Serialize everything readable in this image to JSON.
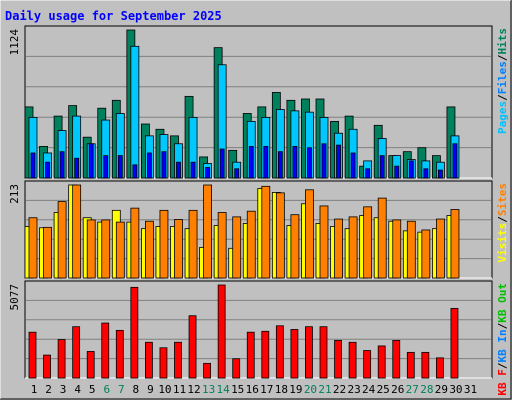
{
  "chart_data": [
    {
      "type": "bar",
      "title": "Daily usage for September 2025",
      "categories": [
        "1",
        "2",
        "3",
        "4",
        "5",
        "6",
        "7",
        "8",
        "9",
        "10",
        "11",
        "12",
        "13",
        "14",
        "15",
        "16",
        "17",
        "18",
        "19",
        "20",
        "21",
        "22",
        "23",
        "24",
        "25",
        "26",
        "27",
        "28",
        "29",
        "30",
        "31"
      ],
      "weekend_days": [
        "6",
        "7",
        "13",
        "14",
        "20",
        "21",
        "27",
        "28"
      ],
      "weekend_color": "#00805c",
      "weekday_color": "#000080",
      "panel": "top",
      "ylim": [
        0,
        1124
      ],
      "max_label": "1124",
      "side_labels": [
        {
          "text": "Pages",
          "color": "#00c0ff"
        },
        {
          "text": "Files",
          "color": "#0080ff"
        },
        {
          "text": "Hits",
          "color": "#00805c"
        }
      ],
      "series": [
        {
          "name": "Hits",
          "color": "#00805c",
          "values": [
            540,
            240,
            470,
            550,
            310,
            530,
            590,
            1124,
            410,
            370,
            320,
            620,
            160,
            990,
            210,
            490,
            540,
            650,
            590,
            600,
            600,
            430,
            470,
            90,
            400,
            170,
            200,
            230,
            170,
            540,
            0
          ]
        },
        {
          "name": "Files",
          "color": "#00c8ff",
          "values": [
            460,
            190,
            360,
            470,
            260,
            440,
            490,
            1000,
            320,
            330,
            260,
            460,
            110,
            860,
            120,
            430,
            460,
            520,
            510,
            500,
            460,
            340,
            370,
            130,
            300,
            170,
            140,
            130,
            120,
            320,
            0
          ]
        },
        {
          "name": "Pages",
          "color": "#0000ff",
          "values": [
            190,
            120,
            200,
            150,
            260,
            170,
            170,
            100,
            190,
            200,
            120,
            120,
            80,
            220,
            70,
            240,
            240,
            200,
            240,
            230,
            260,
            250,
            190,
            70,
            170,
            90,
            130,
            70,
            60,
            260,
            0
          ]
        }
      ]
    },
    {
      "type": "bar",
      "panel": "middle",
      "ylim": [
        0,
        213
      ],
      "max_label": "213",
      "side_labels": [
        {
          "text": "Visits",
          "color": "#ffff00"
        },
        {
          "text": "Sites",
          "color": "#ff8000"
        }
      ],
      "series": [
        {
          "name": "Visits",
          "color": "#ffff00",
          "values": [
            118,
            115,
            150,
            213,
            138,
            128,
            155,
            128,
            113,
            118,
            118,
            113,
            70,
            120,
            68,
            125,
            205,
            196,
            120,
            170,
            125,
            118,
            113,
            143,
            138,
            130,
            108,
            105,
            113,
            143,
            0
          ]
        },
        {
          "name": "Sites",
          "color": "#ff8000",
          "values": [
            138,
            116,
            175,
            213,
            133,
            133,
            128,
            160,
            130,
            155,
            134,
            155,
            213,
            150,
            140,
            153,
            210,
            195,
            145,
            202,
            165,
            135,
            140,
            163,
            183,
            133,
            130,
            110,
            135,
            157,
            0
          ]
        }
      ]
    },
    {
      "type": "bar",
      "panel": "bottom",
      "ylim": [
        0,
        5077
      ],
      "max_label": "5077",
      "side_labels": [
        {
          "text": "KB F",
          "color": "#ff0000"
        },
        {
          "text": "KB In",
          "color": "#0080ff"
        },
        {
          "text": "KB Out",
          "color": "#00c000"
        }
      ],
      "series": [
        {
          "name": "KB F",
          "color": "#ff0000",
          "values": [
            2500,
            1250,
            2100,
            2800,
            1450,
            3000,
            2600,
            4950,
            1950,
            1650,
            1950,
            3400,
            800,
            5077,
            1050,
            2500,
            2550,
            2850,
            2650,
            2800,
            2800,
            2050,
            1950,
            1500,
            1750,
            2050,
            1400,
            1400,
            1100,
            3800,
            0
          ]
        }
      ]
    }
  ]
}
